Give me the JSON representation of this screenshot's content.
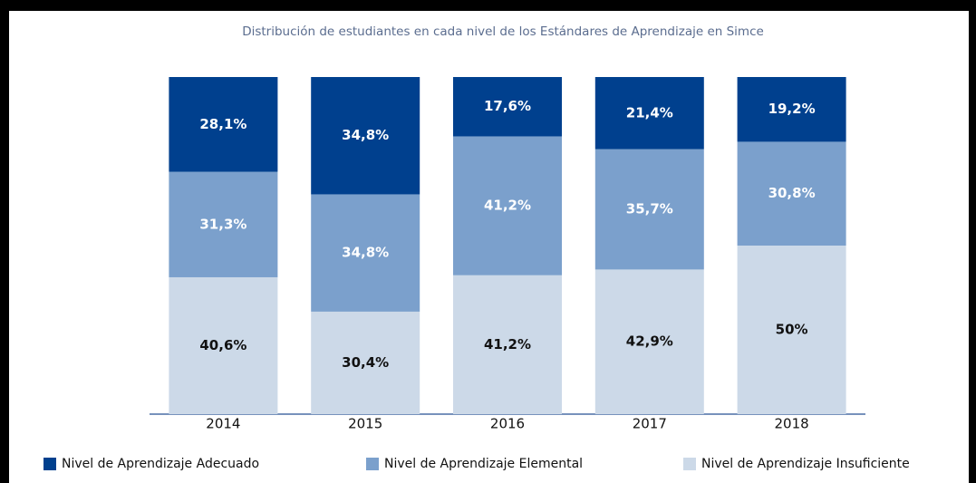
{
  "chart_data": {
    "type": "stacked_bar",
    "title": "Distribución de estudiantes en cada nivel de los Estándares de Aprendizaje en Simce",
    "categories": [
      "2014",
      "2015",
      "2016",
      "2017",
      "2018"
    ],
    "ylim": [
      0,
      100
    ],
    "series": [
      {
        "name": "Nivel de Aprendizaje Insuficiente",
        "color": "#ccd9e8",
        "label_color": "#111111",
        "values": [
          40.6,
          30.4,
          41.2,
          42.9,
          50
        ],
        "value_labels": [
          "40,6%",
          "30,4%",
          "41,2%",
          "42,9%",
          "50%"
        ]
      },
      {
        "name": "Nivel de Aprendizaje Elemental",
        "color": "#7ba0cc",
        "label_color": "#ffffff",
        "values": [
          31.3,
          34.8,
          41.2,
          35.7,
          30.8
        ],
        "value_labels": [
          "31,3%",
          "34,8%",
          "41,2%",
          "35,7%",
          "30,8%"
        ]
      },
      {
        "name": "Nivel de Aprendizaje Adecuado",
        "color": "#00408e",
        "label_color": "#ffffff",
        "values": [
          28.1,
          34.8,
          17.6,
          21.4,
          19.2
        ],
        "value_labels": [
          "28,1%",
          "34,8%",
          "17,6%",
          "21,4%",
          "19,2%"
        ]
      }
    ]
  }
}
